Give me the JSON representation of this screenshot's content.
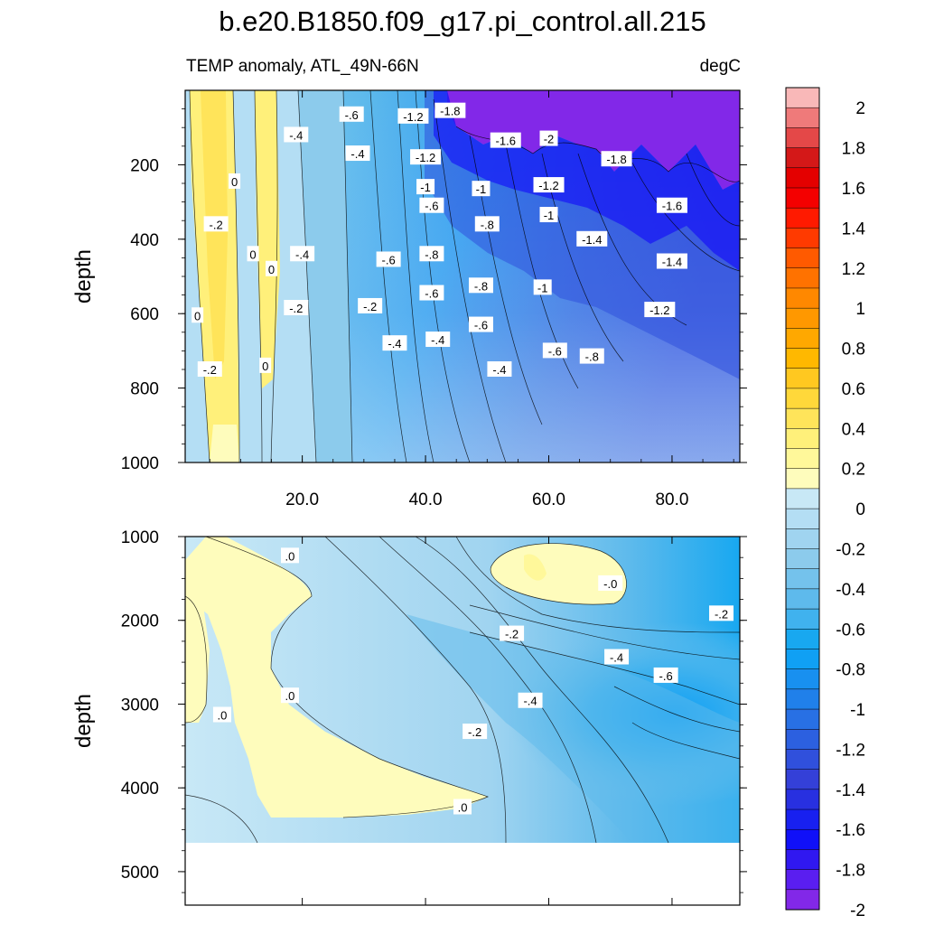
{
  "title": "b.e20.B1850.f09_g17.pi_control.all.215",
  "subtitle_left": "TEMP anomaly, ATL_49N-66N",
  "subtitle_right": "degC",
  "chart_data": [
    {
      "type": "heatmap",
      "panel": "upper",
      "ylabel": "depth",
      "xlabel": "",
      "x_ticks": [
        "20.0",
        "40.0",
        "60.0",
        "80.0"
      ],
      "x_tick_values": [
        20,
        40,
        60,
        80
      ],
      "xlim": [
        1,
        91
      ],
      "y_ticks": [
        "200",
        "400",
        "600",
        "800",
        "1000"
      ],
      "y_tick_values": [
        200,
        400,
        600,
        800,
        1000
      ],
      "ylim": [
        0,
        1000
      ],
      "y_reversed": true,
      "contour_labels": [
        {
          "text": "-.6",
          "x": 28,
          "y": 65
        },
        {
          "text": "-1.2",
          "x": 38,
          "y": 70
        },
        {
          "text": "-1.8",
          "x": 44,
          "y": 55
        },
        {
          "text": "-.4",
          "x": 19,
          "y": 120
        },
        {
          "text": "-1.6",
          "x": 53,
          "y": 135
        },
        {
          "text": "-2",
          "x": 60,
          "y": 130
        },
        {
          "text": "-.4",
          "x": 29,
          "y": 170
        },
        {
          "text": "-1.2",
          "x": 40,
          "y": 180
        },
        {
          "text": "-1.8",
          "x": 71,
          "y": 185
        },
        {
          "text": "0",
          "x": 9,
          "y": 245
        },
        {
          "text": "-1",
          "x": 40,
          "y": 260
        },
        {
          "text": "-1",
          "x": 49,
          "y": 265
        },
        {
          "text": "-1.2",
          "x": 60,
          "y": 255
        },
        {
          "text": "-.6",
          "x": 41,
          "y": 310
        },
        {
          "text": "-1.6",
          "x": 80,
          "y": 310
        },
        {
          "text": "-1",
          "x": 60,
          "y": 335
        },
        {
          "text": "-.2",
          "x": 6,
          "y": 360
        },
        {
          "text": "-.8",
          "x": 50,
          "y": 360
        },
        {
          "text": "-1.4",
          "x": 67,
          "y": 400
        },
        {
          "text": "0",
          "x": 12,
          "y": 440
        },
        {
          "text": "-.4",
          "x": 20,
          "y": 440
        },
        {
          "text": "-.8",
          "x": 41,
          "y": 440
        },
        {
          "text": "-1.4",
          "x": 80,
          "y": 460
        },
        {
          "text": "-.6",
          "x": 34,
          "y": 455
        },
        {
          "text": "0",
          "x": 15,
          "y": 480
        },
        {
          "text": "-.8",
          "x": 49,
          "y": 525
        },
        {
          "text": "-1",
          "x": 59,
          "y": 530
        },
        {
          "text": "-.6",
          "x": 41,
          "y": 545
        },
        {
          "text": "-.2",
          "x": 31,
          "y": 580
        },
        {
          "text": "-.2",
          "x": 19,
          "y": 585
        },
        {
          "text": "-1.2",
          "x": 78,
          "y": 590
        },
        {
          "text": "0",
          "x": 3,
          "y": 605
        },
        {
          "text": "-.6",
          "x": 49,
          "y": 630
        },
        {
          "text": "-.4",
          "x": 42,
          "y": 670
        },
        {
          "text": "-.4",
          "x": 35,
          "y": 680
        },
        {
          "text": "-.6",
          "x": 61,
          "y": 700
        },
        {
          "text": "-.8",
          "x": 67,
          "y": 715
        },
        {
          "text": "-.2",
          "x": 5,
          "y": 750
        },
        {
          "text": "0",
          "x": 14,
          "y": 740
        },
        {
          "text": "-.4",
          "x": 52,
          "y": 750
        }
      ]
    },
    {
      "type": "heatmap",
      "panel": "lower",
      "ylabel": "depth",
      "xlabel": "",
      "y_ticks": [
        "1000",
        "2000",
        "3000",
        "4000",
        "5000"
      ],
      "y_tick_values": [
        1000,
        2000,
        3000,
        4000,
        5000
      ],
      "ylim": [
        1000,
        5400
      ],
      "y_reversed": true,
      "xlim": [
        1,
        91
      ],
      "data_bottom_depth": 4600,
      "contour_labels": [
        {
          "text": ".0",
          "x": 18,
          "y": 1230
        },
        {
          "text": "-.0",
          "x": 70,
          "y": 1560
        },
        {
          "text": "-.2",
          "x": 88,
          "y": 1920
        },
        {
          "text": "-.2",
          "x": 54,
          "y": 2160
        },
        {
          "text": "-.4",
          "x": 71,
          "y": 2440
        },
        {
          "text": "-.6",
          "x": 79,
          "y": 2660
        },
        {
          "text": ".0",
          "x": 18,
          "y": 2900
        },
        {
          "text": "-.4",
          "x": 57,
          "y": 2960
        },
        {
          "text": ".0",
          "x": 7,
          "y": 3130
        },
        {
          "text": "-.2",
          "x": 48,
          "y": 3330
        },
        {
          "text": ".0",
          "x": 46,
          "y": 4230
        }
      ]
    }
  ],
  "colorbar": {
    "labels": [
      "2",
      "1.8",
      "1.6",
      "1.4",
      "1.2",
      "1",
      "0.8",
      "0.6",
      "0.4",
      "0.2",
      "0",
      "-0.2",
      "-0.4",
      "-0.6",
      "-0.8",
      "-1",
      "-1.2",
      "-1.4",
      "-1.6",
      "-1.8",
      "-2"
    ],
    "colors_top_to_bottom": [
      "#f9b8b8",
      "#ef7a7a",
      "#e44848",
      "#d41818",
      "#e40000",
      "#f40000",
      "#ff1a00",
      "#ff3a00",
      "#ff5a00",
      "#ff7200",
      "#ff8800",
      "#ff9800",
      "#ffa800",
      "#ffb800",
      "#ffc820",
      "#ffd83a",
      "#ffe45a",
      "#fff07a",
      "#fff89a",
      "#fefcbc",
      "#c8e8f6",
      "#b4def4",
      "#a0d4f0",
      "#8ccbec",
      "#74c2ec",
      "#5ebaec",
      "#40b2ee",
      "#18a8f0",
      "#10a0f4",
      "#1890f0",
      "#2080ea",
      "#2870e4",
      "#2c60e0",
      "#3050dc",
      "#3440d8",
      "#2830e0",
      "#1820f0",
      "#1010f8",
      "#3018f0",
      "#5a1ef0",
      "#8228e8"
    ]
  }
}
